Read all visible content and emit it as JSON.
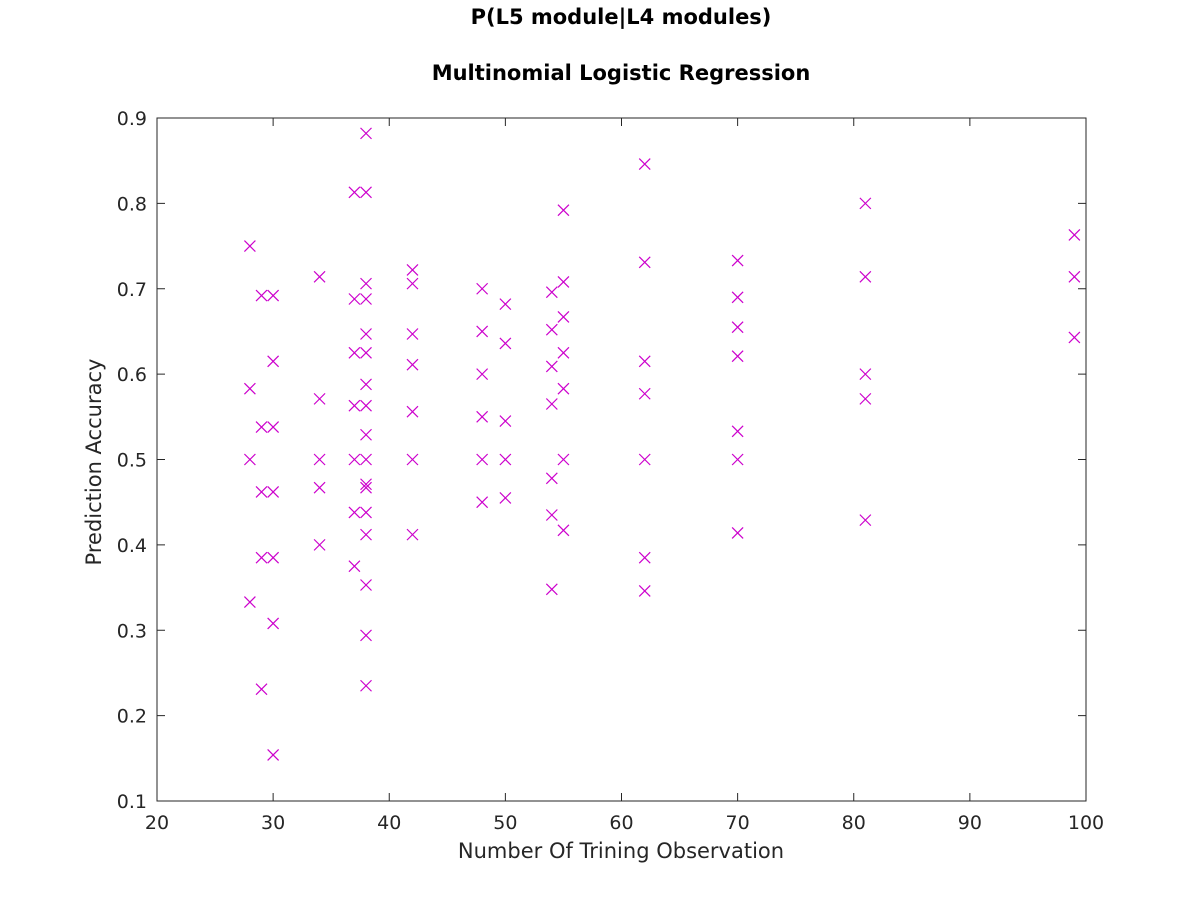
{
  "chart_data": {
    "type": "scatter",
    "title": "P(L5 module|L4 modules)",
    "subtitle": "Multinomial Logistic Regression",
    "xlabel": "Number Of Trining Observation",
    "ylabel": "Prediction Accuracy",
    "xlim": [
      20,
      100
    ],
    "ylim": [
      0.1,
      0.9
    ],
    "xticks": [
      20,
      30,
      40,
      50,
      60,
      70,
      80,
      90,
      100
    ],
    "yticks": [
      0.1,
      0.2,
      0.3,
      0.4,
      0.5,
      0.6,
      0.7,
      0.8,
      0.9
    ],
    "grid": false,
    "marker": "x",
    "marker_color": "#cc00cc",
    "points": [
      [
        28,
        0.75
      ],
      [
        28,
        0.583
      ],
      [
        28,
        0.5
      ],
      [
        28,
        0.333
      ],
      [
        29,
        0.692
      ],
      [
        29,
        0.538
      ],
      [
        29,
        0.462
      ],
      [
        29,
        0.385
      ],
      [
        29,
        0.231
      ],
      [
        30,
        0.692
      ],
      [
        30,
        0.538
      ],
      [
        30,
        0.462
      ],
      [
        30,
        0.385
      ],
      [
        30,
        0.615
      ],
      [
        30,
        0.308
      ],
      [
        30,
        0.154
      ],
      [
        34,
        0.714
      ],
      [
        34,
        0.571
      ],
      [
        34,
        0.5
      ],
      [
        34,
        0.467
      ],
      [
        34,
        0.4
      ],
      [
        37,
        0.813
      ],
      [
        37,
        0.688
      ],
      [
        37,
        0.625
      ],
      [
        37,
        0.563
      ],
      [
        37,
        0.5
      ],
      [
        37,
        0.438
      ],
      [
        37,
        0.375
      ],
      [
        38,
        0.882
      ],
      [
        38,
        0.813
      ],
      [
        38,
        0.706
      ],
      [
        38,
        0.688
      ],
      [
        38,
        0.647
      ],
      [
        38,
        0.625
      ],
      [
        38,
        0.588
      ],
      [
        38,
        0.563
      ],
      [
        38,
        0.529
      ],
      [
        38,
        0.5
      ],
      [
        38,
        0.471
      ],
      [
        38,
        0.467
      ],
      [
        38,
        0.438
      ],
      [
        38,
        0.412
      ],
      [
        38,
        0.353
      ],
      [
        38,
        0.294
      ],
      [
        38,
        0.235
      ],
      [
        42,
        0.722
      ],
      [
        42,
        0.706
      ],
      [
        42,
        0.647
      ],
      [
        42,
        0.611
      ],
      [
        42,
        0.556
      ],
      [
        42,
        0.5
      ],
      [
        42,
        0.412
      ],
      [
        48,
        0.7
      ],
      [
        48,
        0.65
      ],
      [
        48,
        0.6
      ],
      [
        48,
        0.55
      ],
      [
        48,
        0.5
      ],
      [
        48,
        0.45
      ],
      [
        50,
        0.682
      ],
      [
        50,
        0.636
      ],
      [
        50,
        0.545
      ],
      [
        50,
        0.5
      ],
      [
        50,
        0.455
      ],
      [
        54,
        0.696
      ],
      [
        54,
        0.652
      ],
      [
        54,
        0.609
      ],
      [
        54,
        0.565
      ],
      [
        54,
        0.478
      ],
      [
        54,
        0.435
      ],
      [
        54,
        0.348
      ],
      [
        55,
        0.792
      ],
      [
        55,
        0.708
      ],
      [
        55,
        0.667
      ],
      [
        55,
        0.625
      ],
      [
        55,
        0.583
      ],
      [
        55,
        0.5
      ],
      [
        55,
        0.417
      ],
      [
        62,
        0.846
      ],
      [
        62,
        0.731
      ],
      [
        62,
        0.615
      ],
      [
        62,
        0.577
      ],
      [
        62,
        0.5
      ],
      [
        62,
        0.385
      ],
      [
        62,
        0.346
      ],
      [
        70,
        0.733
      ],
      [
        70,
        0.69
      ],
      [
        70,
        0.655
      ],
      [
        70,
        0.621
      ],
      [
        70,
        0.533
      ],
      [
        70,
        0.5
      ],
      [
        70,
        0.414
      ],
      [
        81,
        0.8
      ],
      [
        81,
        0.714
      ],
      [
        81,
        0.6
      ],
      [
        81,
        0.571
      ],
      [
        81,
        0.429
      ],
      [
        99,
        0.763
      ],
      [
        99,
        0.714
      ],
      [
        99,
        0.643
      ]
    ]
  }
}
